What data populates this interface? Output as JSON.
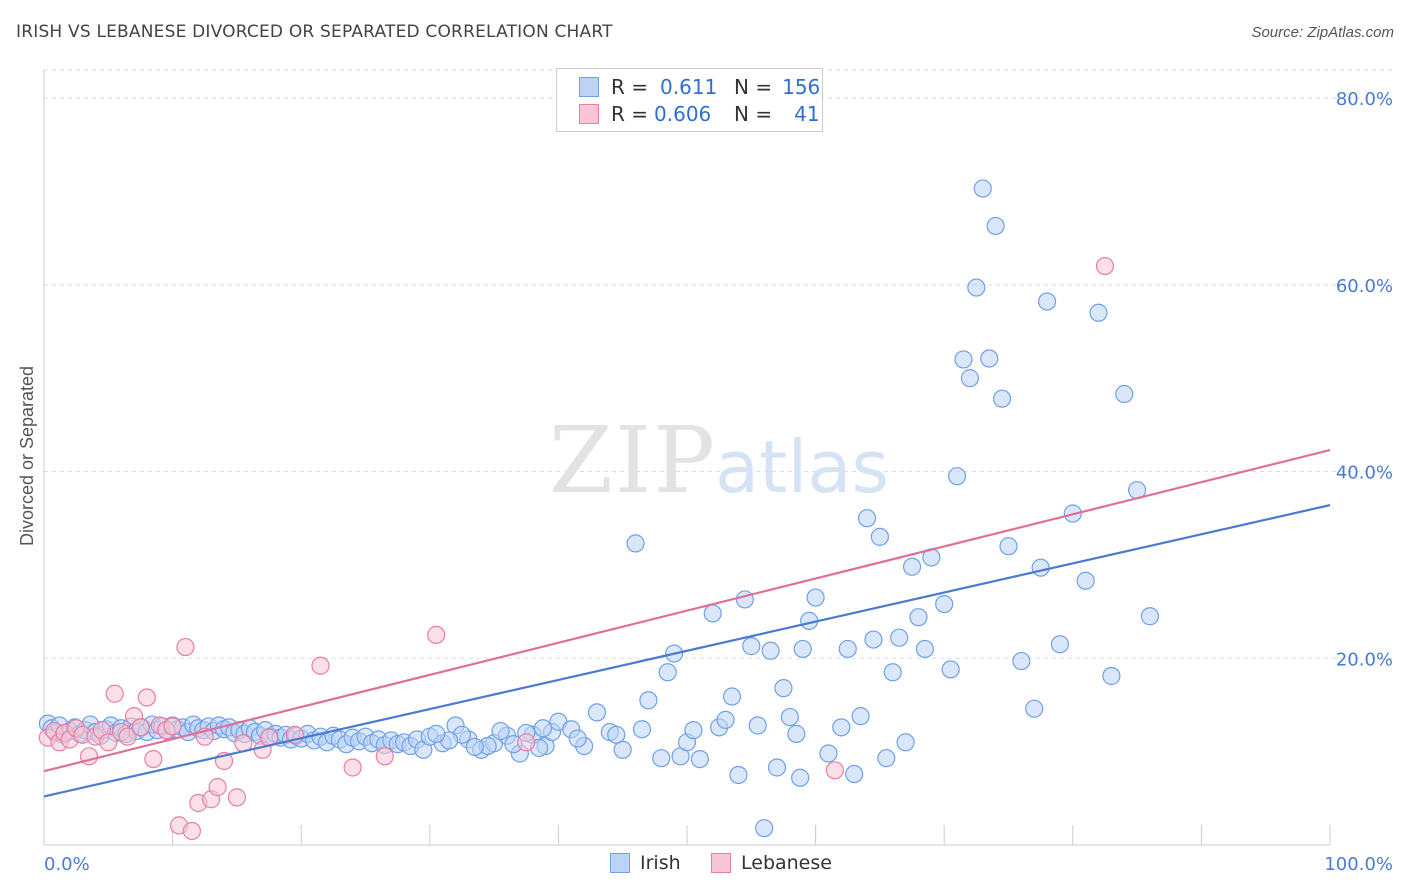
{
  "title": "IRISH VS LEBANESE DIVORCED OR SEPARATED CORRELATION CHART",
  "source": "Source: ZipAtlas.com",
  "watermark": {
    "zip": "ZIP",
    "atlas": "atlas"
  },
  "legend": {
    "rows": [
      {
        "r_label": "R =",
        "r_value": "0.611",
        "n_label": "N =",
        "n_value": "156",
        "color": "#6fa0e8",
        "fill": "#bcd3f5"
      },
      {
        "r_label": "R =",
        "r_value": "0.606",
        "n_label": "N =",
        "n_value": "41",
        "color": "#e87fa0",
        "fill": "#f8c6d6"
      }
    ]
  },
  "bottom_legend": [
    {
      "label": "Irish",
      "color": "#6fa0e8",
      "fill": "#bcd3f5"
    },
    {
      "label": "Lebanese",
      "color": "#e87fa0",
      "fill": "#f8c6d6"
    }
  ],
  "chart_data": {
    "type": "scatter",
    "title": "IRISH VS LEBANESE DIVORCED OR SEPARATED CORRELATION CHART",
    "xlabel": "",
    "ylabel": "Divorced or Separated",
    "xlim": [
      0,
      100
    ],
    "ylim": [
      0,
      83
    ],
    "x_tick_labels": [
      "0.0%",
      "100.0%"
    ],
    "y_ticks": [
      20,
      40,
      60,
      80
    ],
    "y_tick_labels": [
      "20.0%",
      "40.0%",
      "60.0%",
      "80.0%"
    ],
    "grid": true,
    "legend_position": "top-center",
    "series": [
      {
        "name": "Irish",
        "color": "#4a7bd0",
        "point_fill": "#bcd3f5",
        "point_stroke": "#6fa0e8",
        "trend": {
          "x": [
            0,
            100
          ],
          "y": [
            5.2,
            36.4
          ]
        },
        "points": [
          [
            0.3,
            13.0
          ],
          [
            0.6,
            12.5
          ],
          [
            0.9,
            12.0
          ],
          [
            1.2,
            12.8
          ],
          [
            1.5,
            11.8
          ],
          [
            2.0,
            12.2
          ],
          [
            2.4,
            12.6
          ],
          [
            2.8,
            11.9
          ],
          [
            3.2,
            12.3
          ],
          [
            3.6,
            12.9
          ],
          [
            4.0,
            12.1
          ],
          [
            4.4,
            11.7
          ],
          [
            4.8,
            12.4
          ],
          [
            5.2,
            12.8
          ],
          [
            5.6,
            12.0
          ],
          [
            6.0,
            12.5
          ],
          [
            6.4,
            11.9
          ],
          [
            6.8,
            12.7
          ],
          [
            7.2,
            12.2
          ],
          [
            7.6,
            12.6
          ],
          [
            8.0,
            12.1
          ],
          [
            8.4,
            12.9
          ],
          [
            8.8,
            12.3
          ],
          [
            9.2,
            12.7
          ],
          [
            9.6,
            12.2
          ],
          [
            10.0,
            12.8
          ],
          [
            10.4,
            12.4
          ],
          [
            10.8,
            12.6
          ],
          [
            11.2,
            12.1
          ],
          [
            11.6,
            12.9
          ],
          [
            12.0,
            12.5
          ],
          [
            12.4,
            12.3
          ],
          [
            12.8,
            12.7
          ],
          [
            13.2,
            12.2
          ],
          [
            13.6,
            12.8
          ],
          [
            14.0,
            12.4
          ],
          [
            14.4,
            12.6
          ],
          [
            14.8,
            12.0
          ],
          [
            15.2,
            12.3
          ],
          [
            15.6,
            11.9
          ],
          [
            16.0,
            12.5
          ],
          [
            16.4,
            12.1
          ],
          [
            16.8,
            11.7
          ],
          [
            17.2,
            12.3
          ],
          [
            17.6,
            11.6
          ],
          [
            18.0,
            11.9
          ],
          [
            18.4,
            11.5
          ],
          [
            18.8,
            11.8
          ],
          [
            19.2,
            11.3
          ],
          [
            19.6,
            11.7
          ],
          [
            20.0,
            11.4
          ],
          [
            20.5,
            11.9
          ],
          [
            21.0,
            11.2
          ],
          [
            21.5,
            11.6
          ],
          [
            22.0,
            11.0
          ],
          [
            22.5,
            11.7
          ],
          [
            23.0,
            11.3
          ],
          [
            23.5,
            10.8
          ],
          [
            24.0,
            11.5
          ],
          [
            24.5,
            11.1
          ],
          [
            25.0,
            11.6
          ],
          [
            25.5,
            10.9
          ],
          [
            26.0,
            11.3
          ],
          [
            26.5,
            10.7
          ],
          [
            27.0,
            11.2
          ],
          [
            27.5,
            10.8
          ],
          [
            28.0,
            11.0
          ],
          [
            28.5,
            10.6
          ],
          [
            29.0,
            11.3
          ],
          [
            29.5,
            10.2
          ],
          [
            30.0,
            11.6
          ],
          [
            31.0,
            10.9
          ],
          [
            32.0,
            12.8
          ],
          [
            33.0,
            11.3
          ],
          [
            34.0,
            10.2
          ],
          [
            35.0,
            10.9
          ],
          [
            36.0,
            11.7
          ],
          [
            37.0,
            9.8
          ],
          [
            38.0,
            11.8
          ],
          [
            39.0,
            10.6
          ],
          [
            32.5,
            11.8
          ],
          [
            34.5,
            10.6
          ],
          [
            35.5,
            12.2
          ],
          [
            36.5,
            10.8
          ],
          [
            37.5,
            12.0
          ],
          [
            38.5,
            10.4
          ],
          [
            39.5,
            12.1
          ],
          [
            33.5,
            10.5
          ],
          [
            31.5,
            11.2
          ],
          [
            30.5,
            11.9
          ],
          [
            40.0,
            13.2
          ],
          [
            41.0,
            12.4
          ],
          [
            42.0,
            10.6
          ],
          [
            43.0,
            14.2
          ],
          [
            44.0,
            12.1
          ],
          [
            45.0,
            10.2
          ],
          [
            46.0,
            32.3
          ],
          [
            47.0,
            15.5
          ],
          [
            48.0,
            9.3
          ],
          [
            48.5,
            18.5
          ],
          [
            49.0,
            20.5
          ],
          [
            49.5,
            9.5
          ],
          [
            50.0,
            11.0
          ],
          [
            50.5,
            12.3
          ],
          [
            51.0,
            9.2
          ],
          [
            52.0,
            24.8
          ],
          [
            52.5,
            12.6
          ],
          [
            53.0,
            13.4
          ],
          [
            53.5,
            15.9
          ],
          [
            54.0,
            7.5
          ],
          [
            54.5,
            26.3
          ],
          [
            55.0,
            21.3
          ],
          [
            55.5,
            12.8
          ],
          [
            56.0,
            1.8
          ],
          [
            56.5,
            20.8
          ],
          [
            57.0,
            8.3
          ],
          [
            57.5,
            16.8
          ],
          [
            58.0,
            13.7
          ],
          [
            58.5,
            11.9
          ],
          [
            58.8,
            7.2
          ],
          [
            59.0,
            21.0
          ],
          [
            59.5,
            24.0
          ],
          [
            60.0,
            26.5
          ],
          [
            61.0,
            9.8
          ],
          [
            62.0,
            12.6
          ],
          [
            62.5,
            21.0
          ],
          [
            63.0,
            7.6
          ],
          [
            63.5,
            13.8
          ],
          [
            64.0,
            35.0
          ],
          [
            64.5,
            22.0
          ],
          [
            65.0,
            33.0
          ],
          [
            65.5,
            9.3
          ],
          [
            66.0,
            18.5
          ],
          [
            66.5,
            22.2
          ],
          [
            67.0,
            11.0
          ],
          [
            67.5,
            29.8
          ],
          [
            68.0,
            24.4
          ],
          [
            68.5,
            21.0
          ],
          [
            69.0,
            30.8
          ],
          [
            70.0,
            25.8
          ],
          [
            70.5,
            18.8
          ],
          [
            71.0,
            39.5
          ],
          [
            71.5,
            52.0
          ],
          [
            72.0,
            50.0
          ],
          [
            72.5,
            59.7
          ],
          [
            73.0,
            70.3
          ],
          [
            73.5,
            52.1
          ],
          [
            74.0,
            66.3
          ],
          [
            74.5,
            47.8
          ],
          [
            75.0,
            32.0
          ],
          [
            76.0,
            19.7
          ],
          [
            77.0,
            14.6
          ],
          [
            77.5,
            29.7
          ],
          [
            78.0,
            58.2
          ],
          [
            79.0,
            21.5
          ],
          [
            80.0,
            35.5
          ],
          [
            81.0,
            28.3
          ],
          [
            82.0,
            57.0
          ],
          [
            83.0,
            18.1
          ],
          [
            84.0,
            48.3
          ],
          [
            85.0,
            38.0
          ],
          [
            86.0,
            24.5
          ],
          [
            38.8,
            12.5
          ],
          [
            41.5,
            11.4
          ],
          [
            44.5,
            11.8
          ],
          [
            46.5,
            12.4
          ]
        ]
      },
      {
        "name": "Lebanese",
        "color": "#e07098",
        "point_fill": "#f8c6d6",
        "point_stroke": "#e87fa0",
        "trend": {
          "x": [
            0,
            100
          ],
          "y": [
            7.9,
            42.3
          ]
        },
        "points": [
          [
            0.3,
            11.5
          ],
          [
            0.8,
            12.2
          ],
          [
            1.2,
            11.0
          ],
          [
            1.6,
            12.0
          ],
          [
            2.0,
            11.3
          ],
          [
            2.5,
            12.5
          ],
          [
            3.0,
            11.8
          ],
          [
            3.5,
            9.5
          ],
          [
            4.0,
            11.6
          ],
          [
            4.5,
            12.3
          ],
          [
            5.0,
            11.0
          ],
          [
            5.5,
            16.2
          ],
          [
            6.0,
            12.1
          ],
          [
            6.5,
            11.6
          ],
          [
            7.0,
            13.8
          ],
          [
            7.5,
            12.6
          ],
          [
            8.0,
            15.8
          ],
          [
            8.5,
            9.2
          ],
          [
            9.0,
            12.8
          ],
          [
            9.5,
            12.3
          ],
          [
            10.0,
            12.7
          ],
          [
            10.5,
            2.1
          ],
          [
            11.0,
            21.2
          ],
          [
            11.5,
            1.5
          ],
          [
            12.0,
            4.5
          ],
          [
            12.5,
            11.6
          ],
          [
            13.0,
            4.9
          ],
          [
            13.5,
            6.2
          ],
          [
            14.0,
            9.0
          ],
          [
            15.0,
            5.1
          ],
          [
            15.5,
            10.9
          ],
          [
            17.0,
            10.2
          ],
          [
            17.5,
            11.5
          ],
          [
            19.5,
            11.8
          ],
          [
            21.5,
            19.2
          ],
          [
            24.0,
            8.3
          ],
          [
            26.5,
            9.5
          ],
          [
            30.5,
            22.5
          ],
          [
            37.5,
            11.0
          ],
          [
            61.5,
            8.0
          ],
          [
            82.5,
            62.0
          ]
        ]
      }
    ]
  }
}
